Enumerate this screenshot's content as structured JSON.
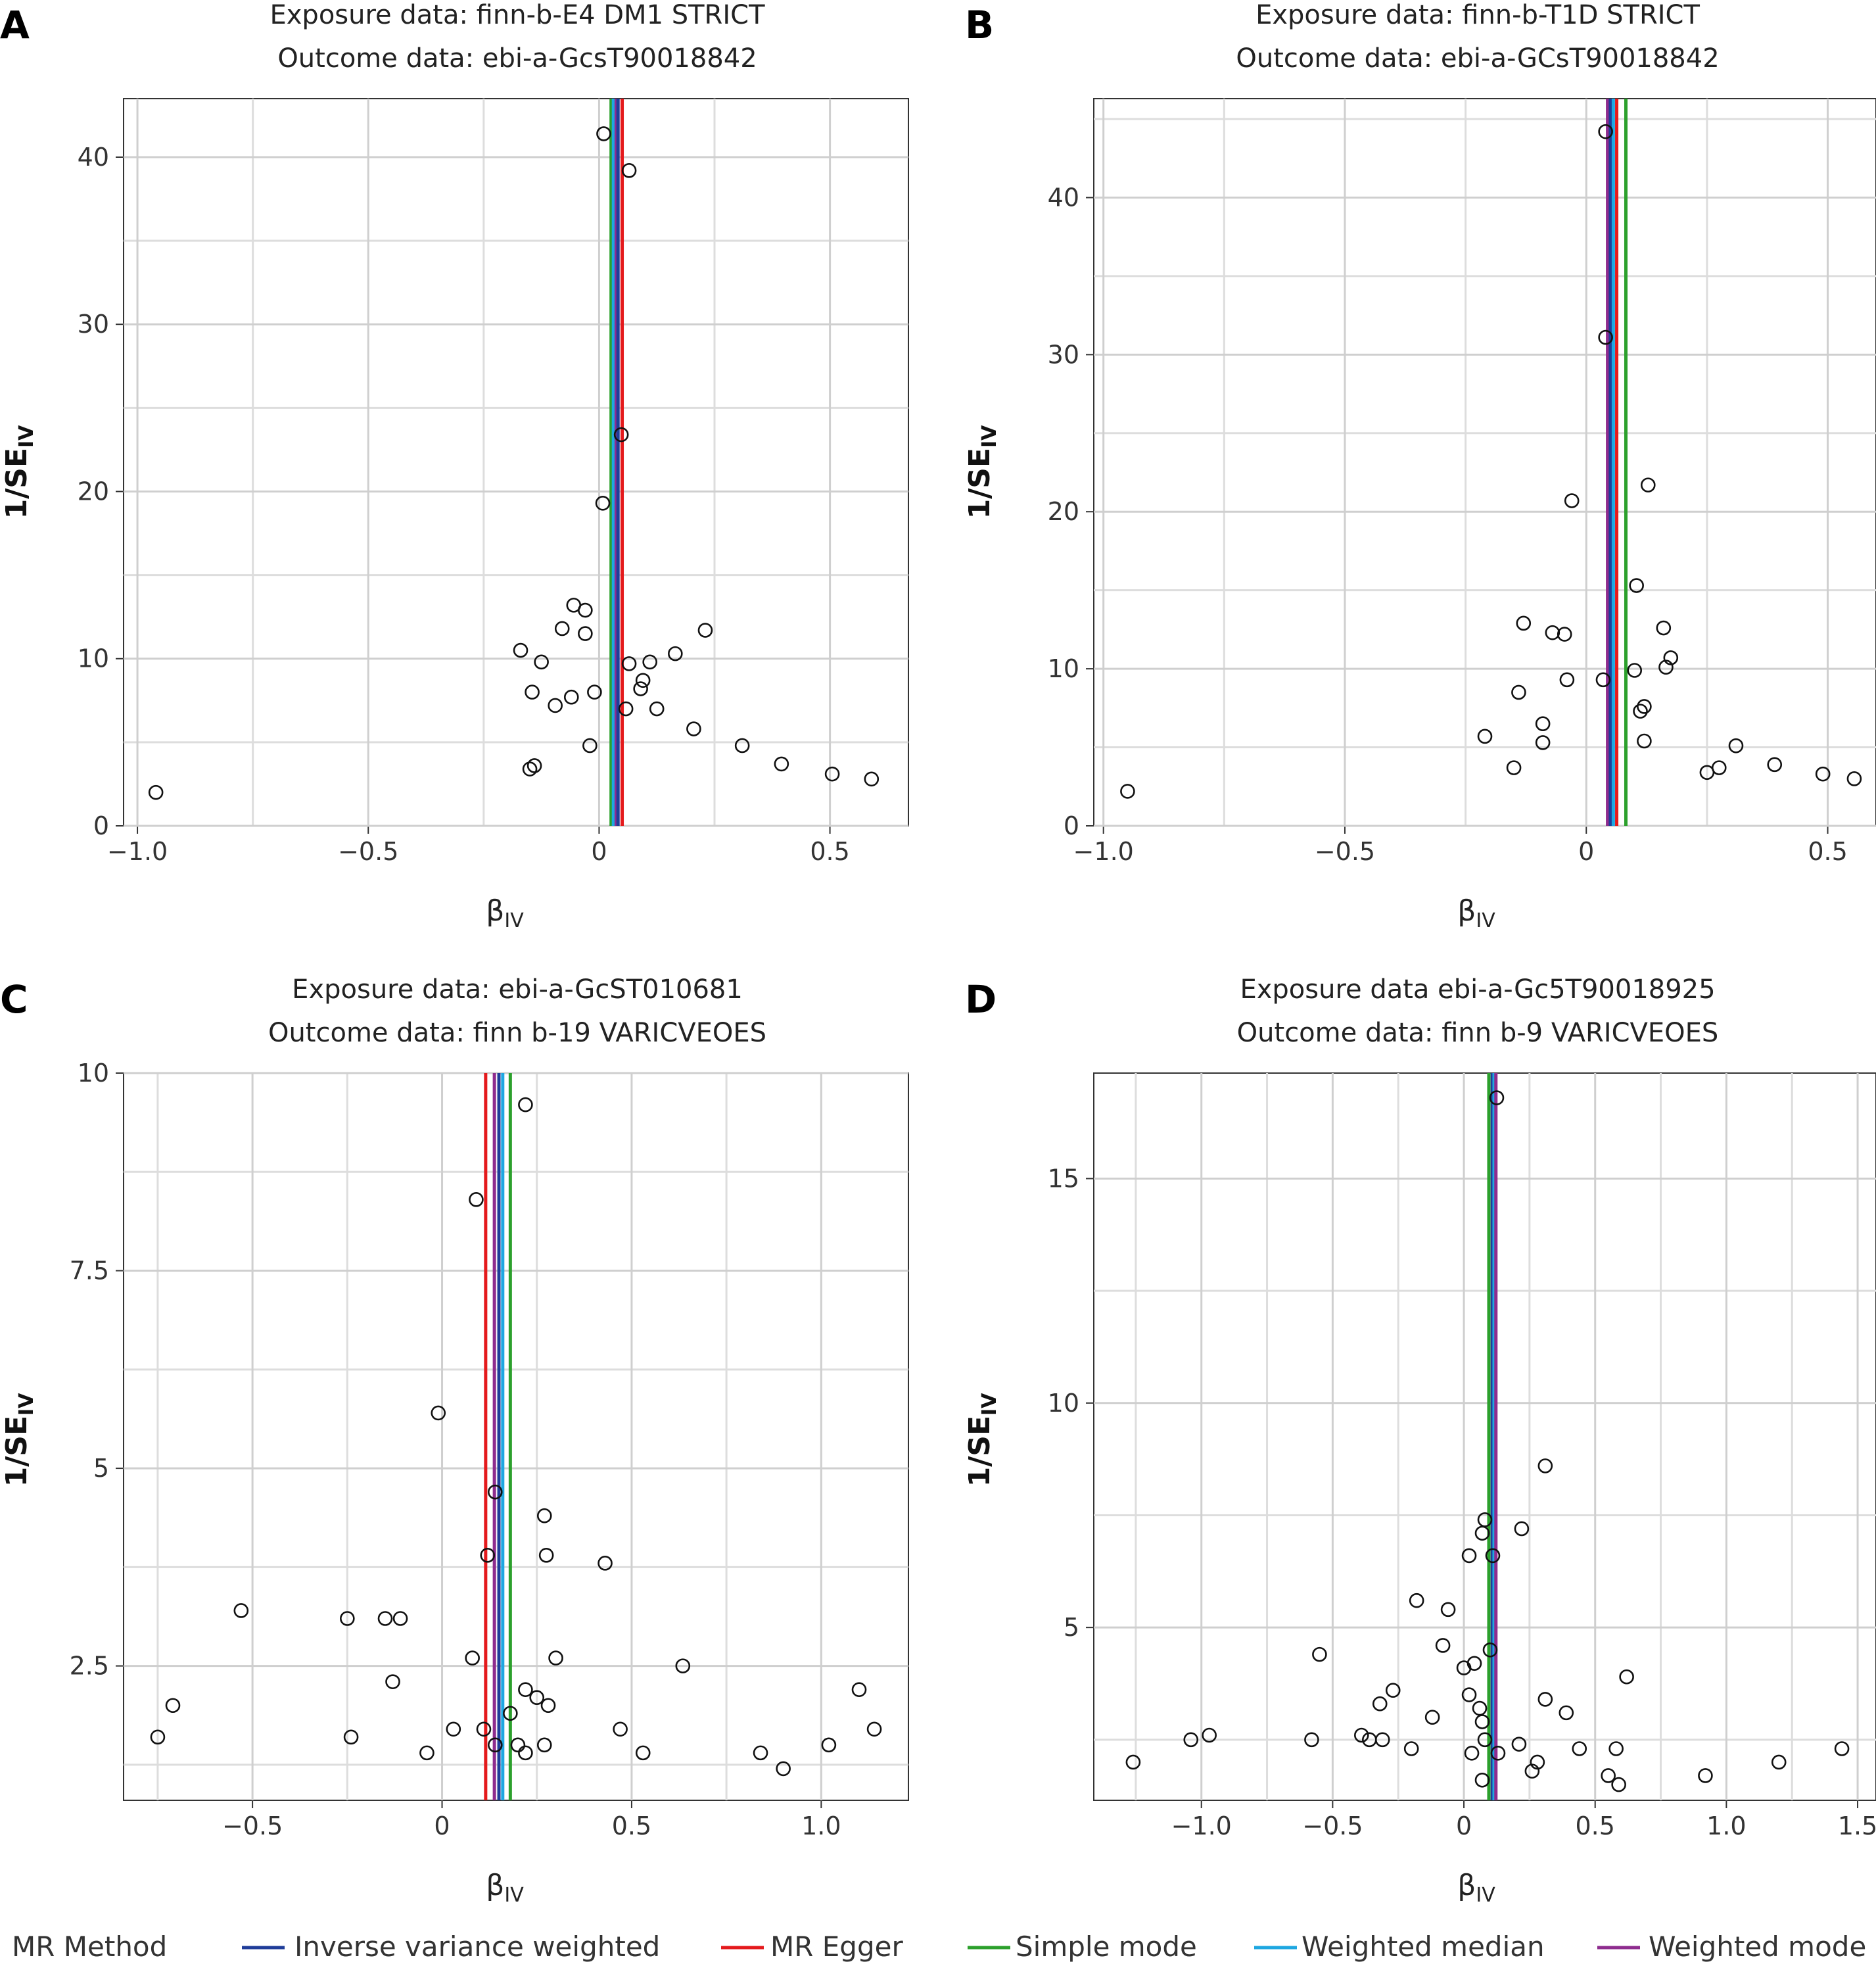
{
  "legend": {
    "title": "MR Method",
    "items": [
      {
        "label": "Inverse variance weighted",
        "color": "#1f3d99"
      },
      {
        "label": "MR Egger",
        "color": "#e41a1c"
      },
      {
        "label": "Simple mode",
        "color": "#2ca02c"
      },
      {
        "label": "Weighted median",
        "color": "#1ea7e1"
      },
      {
        "label": "Weighted mode",
        "color": "#8e2c8e"
      }
    ]
  },
  "chart_data": [
    {
      "panel": "A",
      "type": "scatter",
      "title": "Exposure data: finn-b-E4 DM1 STRICT",
      "subtitle": "Outcome data: ebi-a-GcsT90018842",
      "xlabel": "β",
      "xlabel_sub": "IV",
      "ylabel": "1/SE",
      "ylabel_sub": "IV",
      "xlim": [
        -1.03,
        0.67
      ],
      "ylim": [
        0,
        43.5
      ],
      "xticks": [
        {
          "v": -1.0,
          "label": "−1.0"
        },
        {
          "v": -0.5,
          "label": "−0.5"
        },
        {
          "v": 0,
          "label": "0"
        },
        {
          "v": 0.5,
          "label": "0.5"
        }
      ],
      "yticks": [
        {
          "v": 0,
          "label": "0"
        },
        {
          "v": 10,
          "label": "10"
        },
        {
          "v": 20,
          "label": "20"
        },
        {
          "v": 30,
          "label": "30"
        },
        {
          "v": 40,
          "label": "40"
        }
      ],
      "lines": [
        {
          "method": "Simple mode",
          "value": 0.026
        },
        {
          "method": "Weighted median",
          "value": 0.031
        },
        {
          "method": "Weighted mode",
          "value": 0.037
        },
        {
          "method": "Inverse variance weighted",
          "value": 0.041
        },
        {
          "method": "MR Egger",
          "value": 0.05
        }
      ],
      "points": [
        [
          -0.96,
          2.0
        ],
        [
          0.01,
          41.4
        ],
        [
          0.065,
          39.2
        ],
        [
          0.048,
          23.4
        ],
        [
          0.008,
          19.3
        ],
        [
          -0.17,
          10.5
        ],
        [
          -0.03,
          12.9
        ],
        [
          -0.055,
          13.2
        ],
        [
          -0.08,
          11.8
        ],
        [
          -0.03,
          11.5
        ],
        [
          -0.125,
          9.8
        ],
        [
          0.23,
          11.7
        ],
        [
          0.165,
          10.3
        ],
        [
          0.11,
          9.8
        ],
        [
          0.065,
          9.7
        ],
        [
          0.095,
          8.7
        ],
        [
          0.09,
          8.2
        ],
        [
          -0.145,
          8.0
        ],
        [
          -0.06,
          7.7
        ],
        [
          -0.01,
          8.0
        ],
        [
          -0.095,
          7.2
        ],
        [
          0.125,
          7.0
        ],
        [
          0.058,
          7.0
        ],
        [
          0.205,
          5.8
        ],
        [
          0.31,
          4.8
        ],
        [
          -0.02,
          4.8
        ],
        [
          0.395,
          3.7
        ],
        [
          -0.14,
          3.6
        ],
        [
          -0.15,
          3.4
        ],
        [
          0.505,
          3.1
        ],
        [
          0.59,
          2.8
        ]
      ]
    },
    {
      "panel": "B",
      "type": "scatter",
      "title": "Exposure data: finn-b-T1D STRICT",
      "subtitle": "Outcome data: ebi-a-GCsT90018842",
      "xlabel": "β",
      "xlabel_sub": "IV",
      "ylabel": "1/SE",
      "ylabel_sub": "IV",
      "xlim": [
        -1.02,
        0.6
      ],
      "ylim": [
        0,
        46.3
      ],
      "xticks": [
        {
          "v": -1.0,
          "label": "−1.0"
        },
        {
          "v": -0.5,
          "label": "−0.5"
        },
        {
          "v": 0,
          "label": "0"
        },
        {
          "v": 0.5,
          "label": "0.5"
        }
      ],
      "yticks": [
        {
          "v": 0,
          "label": "0"
        },
        {
          "v": 10,
          "label": "10"
        },
        {
          "v": 20,
          "label": "20"
        },
        {
          "v": 30,
          "label": "30"
        },
        {
          "v": 40,
          "label": "40"
        }
      ],
      "lines": [
        {
          "method": "Weighted mode",
          "value": 0.044
        },
        {
          "method": "Inverse variance weighted",
          "value": 0.05
        },
        {
          "method": "Weighted median",
          "value": 0.056
        },
        {
          "method": "MR Egger",
          "value": 0.063
        },
        {
          "method": "Simple mode",
          "value": 0.082
        }
      ],
      "points": [
        [
          -0.95,
          2.2
        ],
        [
          0.04,
          44.2
        ],
        [
          0.04,
          31.1
        ],
        [
          -0.03,
          20.7
        ],
        [
          0.128,
          21.7
        ],
        [
          0.104,
          15.3
        ],
        [
          0.16,
          12.6
        ],
        [
          -0.13,
          12.9
        ],
        [
          -0.07,
          12.3
        ],
        [
          -0.045,
          12.2
        ],
        [
          0.175,
          10.7
        ],
        [
          0.165,
          10.1
        ],
        [
          0.1,
          9.9
        ],
        [
          0.035,
          9.3
        ],
        [
          -0.04,
          9.3
        ],
        [
          -0.14,
          8.5
        ],
        [
          0.12,
          7.6
        ],
        [
          0.112,
          7.3
        ],
        [
          -0.09,
          6.5
        ],
        [
          -0.09,
          5.3
        ],
        [
          0.12,
          5.4
        ],
        [
          -0.21,
          5.7
        ],
        [
          0.31,
          5.1
        ],
        [
          0.275,
          3.7
        ],
        [
          0.25,
          3.4
        ],
        [
          0.39,
          3.9
        ],
        [
          0.49,
          3.3
        ],
        [
          0.555,
          3.0
        ],
        [
          -0.15,
          3.7
        ]
      ]
    },
    {
      "panel": "C",
      "type": "scatter",
      "title": "Exposure data: ebi-a-GcST010681",
      "subtitle": "Outcome data: finn b-19 VARICVEOES",
      "xlabel": "β",
      "xlabel_sub": "IV",
      "ylabel": "1/SE",
      "ylabel_sub": "IV",
      "xlim": [
        -0.84,
        1.23
      ],
      "ylim": [
        0.8,
        10.0
      ],
      "xticks": [
        {
          "v": -0.5,
          "label": "−0.5"
        },
        {
          "v": 0,
          "label": "0"
        },
        {
          "v": 0.5,
          "label": "0.5"
        },
        {
          "v": 1.0,
          "label": "1.0"
        }
      ],
      "yticks": [
        {
          "v": 2.5,
          "label": "2.5"
        },
        {
          "v": 5,
          "label": "5"
        },
        {
          "v": 7.5,
          "label": "7.5"
        },
        {
          "v": 10,
          "label": "10"
        }
      ],
      "lines": [
        {
          "method": "MR Egger",
          "value": 0.115
        },
        {
          "method": "Weighted mode",
          "value": 0.138
        },
        {
          "method": "Inverse variance weighted",
          "value": 0.15
        },
        {
          "method": "Weighted median",
          "value": 0.16
        },
        {
          "method": "Simple mode",
          "value": 0.18
        }
      ],
      "points": [
        [
          0.22,
          9.6
        ],
        [
          0.09,
          8.4
        ],
        [
          -0.01,
          5.7
        ],
        [
          0.14,
          4.7
        ],
        [
          0.27,
          4.4
        ],
        [
          0.275,
          3.9
        ],
        [
          0.43,
          3.8
        ],
        [
          0.12,
          3.9
        ],
        [
          -0.53,
          3.2
        ],
        [
          -0.15,
          3.1
        ],
        [
          -0.25,
          3.1
        ],
        [
          -0.11,
          3.1
        ],
        [
          0.08,
          2.6
        ],
        [
          0.3,
          2.6
        ],
        [
          0.635,
          2.5
        ],
        [
          -0.13,
          2.3
        ],
        [
          -0.71,
          2.0
        ],
        [
          0.22,
          2.2
        ],
        [
          0.25,
          2.1
        ],
        [
          1.1,
          2.2
        ],
        [
          0.28,
          2.0
        ],
        [
          0.18,
          1.9
        ],
        [
          0.11,
          1.7
        ],
        [
          0.03,
          1.7
        ],
        [
          -0.24,
          1.6
        ],
        [
          -0.75,
          1.6
        ],
        [
          0.47,
          1.7
        ],
        [
          1.14,
          1.7
        ],
        [
          0.14,
          1.5
        ],
        [
          0.2,
          1.5
        ],
        [
          0.27,
          1.5
        ],
        [
          0.53,
          1.4
        ],
        [
          -0.04,
          1.4
        ],
        [
          0.22,
          1.4
        ],
        [
          0.84,
          1.4
        ],
        [
          1.02,
          1.5
        ],
        [
          0.9,
          1.2
        ]
      ]
    },
    {
      "panel": "D",
      "type": "scatter",
      "title": "Exposure data ebi-a-Gc5T90018925",
      "subtitle": "Outcome data: finn b-9 VARICVEOES",
      "xlabel": "β",
      "xlabel_sub": "IV",
      "ylabel": "1/SE",
      "ylabel_sub": "IV",
      "xlim": [
        -1.41,
        1.57
      ],
      "ylim": [
        1.15,
        17.35
      ],
      "xticks": [
        {
          "v": -1.0,
          "label": "−1.0"
        },
        {
          "v": -0.5,
          "label": "−0.5"
        },
        {
          "v": 0,
          "label": "0"
        },
        {
          "v": 0.5,
          "label": "0.5"
        },
        {
          "v": 1.0,
          "label": "1.0"
        },
        {
          "v": 1.5,
          "label": "1.5"
        }
      ],
      "yticks": [
        {
          "v": 5,
          "label": "5"
        },
        {
          "v": 10,
          "label": "10"
        },
        {
          "v": 15,
          "label": "15"
        }
      ],
      "lines": [
        {
          "method": "Simple mode",
          "value": 0.095
        },
        {
          "method": "Inverse variance weighted",
          "value": 0.108
        },
        {
          "method": "Weighted median",
          "value": 0.115
        },
        {
          "method": "Weighted mode",
          "value": 0.122
        }
      ],
      "points": [
        [
          0.125,
          16.8
        ],
        [
          0.31,
          8.6
        ],
        [
          0.22,
          7.2
        ],
        [
          0.08,
          7.4
        ],
        [
          0.07,
          7.1
        ],
        [
          0.11,
          6.6
        ],
        [
          0.02,
          6.6
        ],
        [
          -0.18,
          5.6
        ],
        [
          -0.06,
          5.4
        ],
        [
          -0.55,
          4.4
        ],
        [
          0.1,
          4.5
        ],
        [
          0.04,
          4.2
        ],
        [
          0.0,
          4.1
        ],
        [
          0.62,
          3.9
        ],
        [
          -0.08,
          4.6
        ],
        [
          -0.27,
          3.6
        ],
        [
          0.31,
          3.4
        ],
        [
          -0.32,
          3.3
        ],
        [
          0.06,
          3.2
        ],
        [
          0.02,
          3.5
        ],
        [
          0.39,
          3.1
        ],
        [
          -0.12,
          3.0
        ],
        [
          0.07,
          2.9
        ],
        [
          -0.39,
          2.6
        ],
        [
          -1.04,
          2.5
        ],
        [
          -0.97,
          2.6
        ],
        [
          -0.58,
          2.5
        ],
        [
          -0.36,
          2.5
        ],
        [
          -0.31,
          2.5
        ],
        [
          0.08,
          2.5
        ],
        [
          0.21,
          2.4
        ],
        [
          -0.2,
          2.3
        ],
        [
          0.44,
          2.3
        ],
        [
          0.58,
          2.3
        ],
        [
          1.44,
          2.3
        ],
        [
          0.03,
          2.2
        ],
        [
          0.13,
          2.2
        ],
        [
          -1.26,
          2.0
        ],
        [
          0.28,
          2.0
        ],
        [
          1.2,
          2.0
        ],
        [
          0.26,
          1.8
        ],
        [
          0.55,
          1.7
        ],
        [
          0.92,
          1.7
        ],
        [
          0.07,
          1.6
        ],
        [
          0.59,
          1.5
        ]
      ]
    }
  ]
}
